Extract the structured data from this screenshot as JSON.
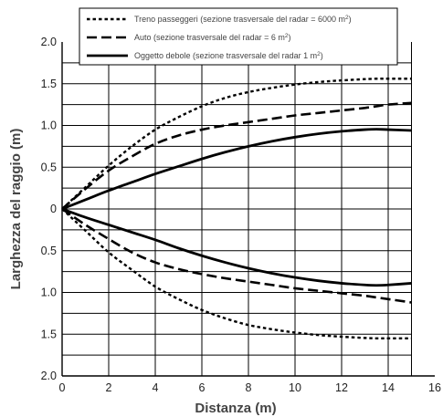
{
  "chart_data": {
    "type": "line",
    "xlabel": "Distanza (m)",
    "ylabel": "Larghezza del raggio (m)",
    "xlim": [
      0,
      16
    ],
    "ylim": [
      -2,
      2
    ],
    "x_ticks": [
      0,
      2,
      4,
      6,
      8,
      10,
      12,
      14,
      16
    ],
    "y_ticks": [
      {
        "value": 2.0,
        "label": "2.0"
      },
      {
        "value": 1.5,
        "label": "1.5"
      },
      {
        "value": 1.0,
        "label": "1.0"
      },
      {
        "value": 0.5,
        "label": "0.5"
      },
      {
        "value": 0,
        "label": "0"
      },
      {
        "value": -0.5,
        "label": "0.5"
      },
      {
        "value": -1.0,
        "label": "1.0"
      },
      {
        "value": -1.5,
        "label": "1.5"
      },
      {
        "value": -2.0,
        "label": "2.0"
      }
    ],
    "grid": true,
    "grid_x_lines": [
      0,
      2,
      4,
      6,
      8,
      10,
      12,
      14,
      15
    ],
    "grid_y_lines": [
      1.75,
      1.5,
      1.25,
      1.0,
      0.75,
      0.5,
      0.25,
      0,
      -0.25,
      -0.5,
      -0.75,
      -1.0,
      -1.25,
      -1.5,
      -1.75,
      -2.0
    ],
    "legend_position": "top",
    "legend_labels": [
      {
        "pre": "Treno passeggeri (sezione trasversale del radar = 6000 m",
        "sup": "2",
        "post": ")"
      },
      {
        "pre": "Auto (sezione trasversale del radar = 6 m",
        "sup": "2",
        "post": ")"
      },
      {
        "pre": "Oggetto debole (sezione trasversale del radar 1 m",
        "sup": "2",
        "post": ")"
      }
    ],
    "x": [
      0,
      1,
      2,
      3,
      4,
      5,
      6,
      7,
      8,
      9,
      10,
      11,
      12,
      13,
      13.5,
      14,
      15
    ],
    "series": [
      {
        "name": "Treno passeggeri",
        "style": "dotted",
        "upper": [
          0,
          0.26,
          0.52,
          0.75,
          0.95,
          1.1,
          1.23,
          1.33,
          1.4,
          1.45,
          1.49,
          1.52,
          1.54,
          1.555,
          1.56,
          1.56,
          1.56
        ],
        "lower": [
          0,
          -0.26,
          -0.52,
          -0.73,
          -0.93,
          -1.08,
          -1.21,
          -1.31,
          -1.39,
          -1.44,
          -1.48,
          -1.51,
          -1.53,
          -1.545,
          -1.55,
          -1.55,
          -1.55
        ]
      },
      {
        "name": "Auto",
        "style": "dashed",
        "upper": [
          0,
          0.24,
          0.46,
          0.63,
          0.78,
          0.88,
          0.95,
          1.0,
          1.04,
          1.08,
          1.12,
          1.15,
          1.18,
          1.21,
          1.23,
          1.25,
          1.27
        ],
        "lower": [
          0,
          -0.19,
          -0.36,
          -0.52,
          -0.64,
          -0.72,
          -0.78,
          -0.83,
          -0.87,
          -0.91,
          -0.95,
          -0.98,
          -1.01,
          -1.04,
          -1.06,
          -1.08,
          -1.12
        ]
      },
      {
        "name": "Oggetto debole",
        "style": "solid",
        "upper": [
          0,
          0.11,
          0.22,
          0.32,
          0.42,
          0.51,
          0.6,
          0.68,
          0.75,
          0.81,
          0.86,
          0.9,
          0.93,
          0.95,
          0.955,
          0.95,
          0.94
        ],
        "lower": [
          0,
          -0.1,
          -0.19,
          -0.28,
          -0.37,
          -0.47,
          -0.56,
          -0.64,
          -0.71,
          -0.77,
          -0.82,
          -0.86,
          -0.89,
          -0.91,
          -0.915,
          -0.91,
          -0.89
        ]
      }
    ]
  }
}
